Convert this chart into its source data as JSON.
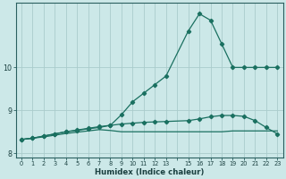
{
  "background_color": "#cce8e8",
  "grid_color": "#aacccc",
  "line_color": "#1a7060",
  "xlabel": "Humidex (Indice chaleur)",
  "yticks": [
    8,
    9,
    10
  ],
  "xtick_labels": [
    "0",
    "1",
    "2",
    "3",
    "4",
    "5",
    "6",
    "7",
    "8",
    "9",
    "10",
    "11",
    "12",
    "13",
    "",
    "15",
    "16",
    "17",
    "18",
    "19",
    "20",
    "21",
    "22",
    "23"
  ],
  "xtick_positions": [
    0,
    1,
    2,
    3,
    4,
    5,
    6,
    7,
    8,
    9,
    10,
    11,
    12,
    13,
    14,
    15,
    16,
    17,
    18,
    19,
    20,
    21,
    22,
    23
  ],
  "xlim": [
    -0.5,
    23.5
  ],
  "ylim": [
    7.9,
    11.5
  ],
  "series": [
    {
      "x": [
        0,
        1,
        2,
        3,
        4,
        5,
        6,
        7,
        8,
        9,
        10,
        11,
        12,
        13,
        15,
        16,
        17,
        18,
        19,
        20,
        21,
        22,
        23
      ],
      "y": [
        8.32,
        8.35,
        8.4,
        8.45,
        8.5,
        8.53,
        8.57,
        8.6,
        8.65,
        8.9,
        9.2,
        9.4,
        9.6,
        9.8,
        10.85,
        11.25,
        11.1,
        10.55,
        10.0,
        10.0,
        10.0,
        10.0,
        10.0
      ],
      "marker": true
    },
    {
      "x": [
        0,
        1,
        2,
        3,
        4,
        5,
        6,
        7,
        8,
        9,
        10,
        11,
        12,
        13,
        15,
        16,
        17,
        18,
        19,
        20,
        21,
        22,
        23
      ],
      "y": [
        8.32,
        8.35,
        8.4,
        8.45,
        8.5,
        8.54,
        8.58,
        8.62,
        8.65,
        8.68,
        8.7,
        8.72,
        8.73,
        8.74,
        8.76,
        8.8,
        8.85,
        8.88,
        8.88,
        8.86,
        8.76,
        8.6,
        8.45
      ],
      "marker": true
    },
    {
      "x": [
        0,
        1,
        2,
        3,
        4,
        5,
        6,
        7,
        8,
        9,
        10,
        11,
        12,
        13,
        15,
        16,
        17,
        18,
        19,
        20,
        21,
        22,
        23
      ],
      "y": [
        8.32,
        8.35,
        8.38,
        8.42,
        8.46,
        8.49,
        8.52,
        8.55,
        8.53,
        8.5,
        8.5,
        8.5,
        8.5,
        8.5,
        8.5,
        8.5,
        8.5,
        8.5,
        8.52,
        8.52,
        8.52,
        8.52,
        8.52
      ],
      "marker": false
    }
  ]
}
